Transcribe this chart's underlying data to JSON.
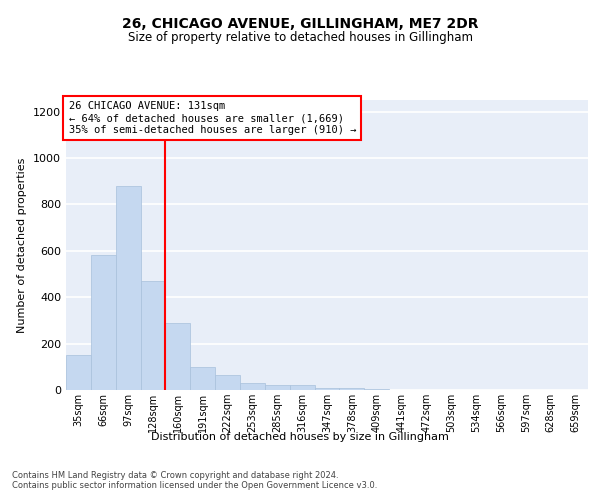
{
  "title1": "26, CHICAGO AVENUE, GILLINGHAM, ME7 2DR",
  "title2": "Size of property relative to detached houses in Gillingham",
  "xlabel": "Distribution of detached houses by size in Gillingham",
  "ylabel": "Number of detached properties",
  "categories": [
    "35sqm",
    "66sqm",
    "97sqm",
    "128sqm",
    "160sqm",
    "191sqm",
    "222sqm",
    "253sqm",
    "285sqm",
    "316sqm",
    "347sqm",
    "378sqm",
    "409sqm",
    "441sqm",
    "472sqm",
    "503sqm",
    "534sqm",
    "566sqm",
    "597sqm",
    "628sqm",
    "659sqm"
  ],
  "values": [
    150,
    580,
    880,
    470,
    290,
    100,
    65,
    30,
    20,
    20,
    10,
    10,
    5,
    0,
    0,
    0,
    0,
    0,
    0,
    0,
    0
  ],
  "bar_color": "#c5d8f0",
  "bar_edge_color": "#a8c0dc",
  "bar_width": 1.0,
  "red_line_x": 3.5,
  "annotation_line1": "26 CHICAGO AVENUE: 131sqm",
  "annotation_line2": "← 64% of detached houses are smaller (1,669)",
  "annotation_line3": "35% of semi-detached houses are larger (910) →",
  "annotation_box_color": "white",
  "annotation_box_edge": "red",
  "ylim": [
    0,
    1250
  ],
  "yticks": [
    0,
    200,
    400,
    600,
    800,
    1000,
    1200
  ],
  "background_color": "#e8eef8",
  "grid_color": "white",
  "footer1": "Contains HM Land Registry data © Crown copyright and database right 2024.",
  "footer2": "Contains public sector information licensed under the Open Government Licence v3.0."
}
